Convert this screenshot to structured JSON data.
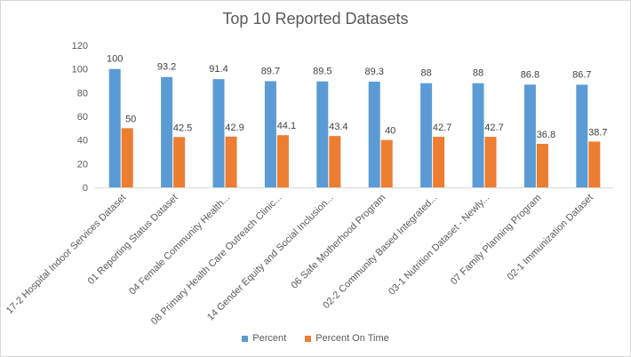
{
  "chart_data": {
    "type": "bar",
    "title": "Top 10 Reported Datasets",
    "categories": [
      "17-2 Hospital Indoor Services Dataset",
      "01 Reporting Status Dataset",
      "04 Female Community Health...",
      "08 Primary Health Care Outreach Clinic...",
      "14 Gender Equity and Social Inclusion...",
      "06 Safe Motherhood Program",
      "02-2 Community Based Integrated...",
      "03-1 Nutrition Dataset - Newly...",
      "07 Family Planning Program",
      "02-1 Immunization Dataset"
    ],
    "series": [
      {
        "name": "Percent",
        "color": "#5B9BD5",
        "values": [
          100,
          93.2,
          91.4,
          89.7,
          89.5,
          89.3,
          88,
          88,
          86.8,
          86.7
        ]
      },
      {
        "name": "Percent On Time",
        "color": "#ED7D31",
        "values": [
          50,
          42.5,
          42.9,
          44.1,
          43.4,
          40,
          42.7,
          42.7,
          36.8,
          38.7
        ]
      }
    ],
    "ylim": [
      0,
      120
    ],
    "yticks": [
      0,
      20,
      40,
      60,
      80,
      100,
      120
    ],
    "grid": false,
    "legend_position": "bottom"
  }
}
